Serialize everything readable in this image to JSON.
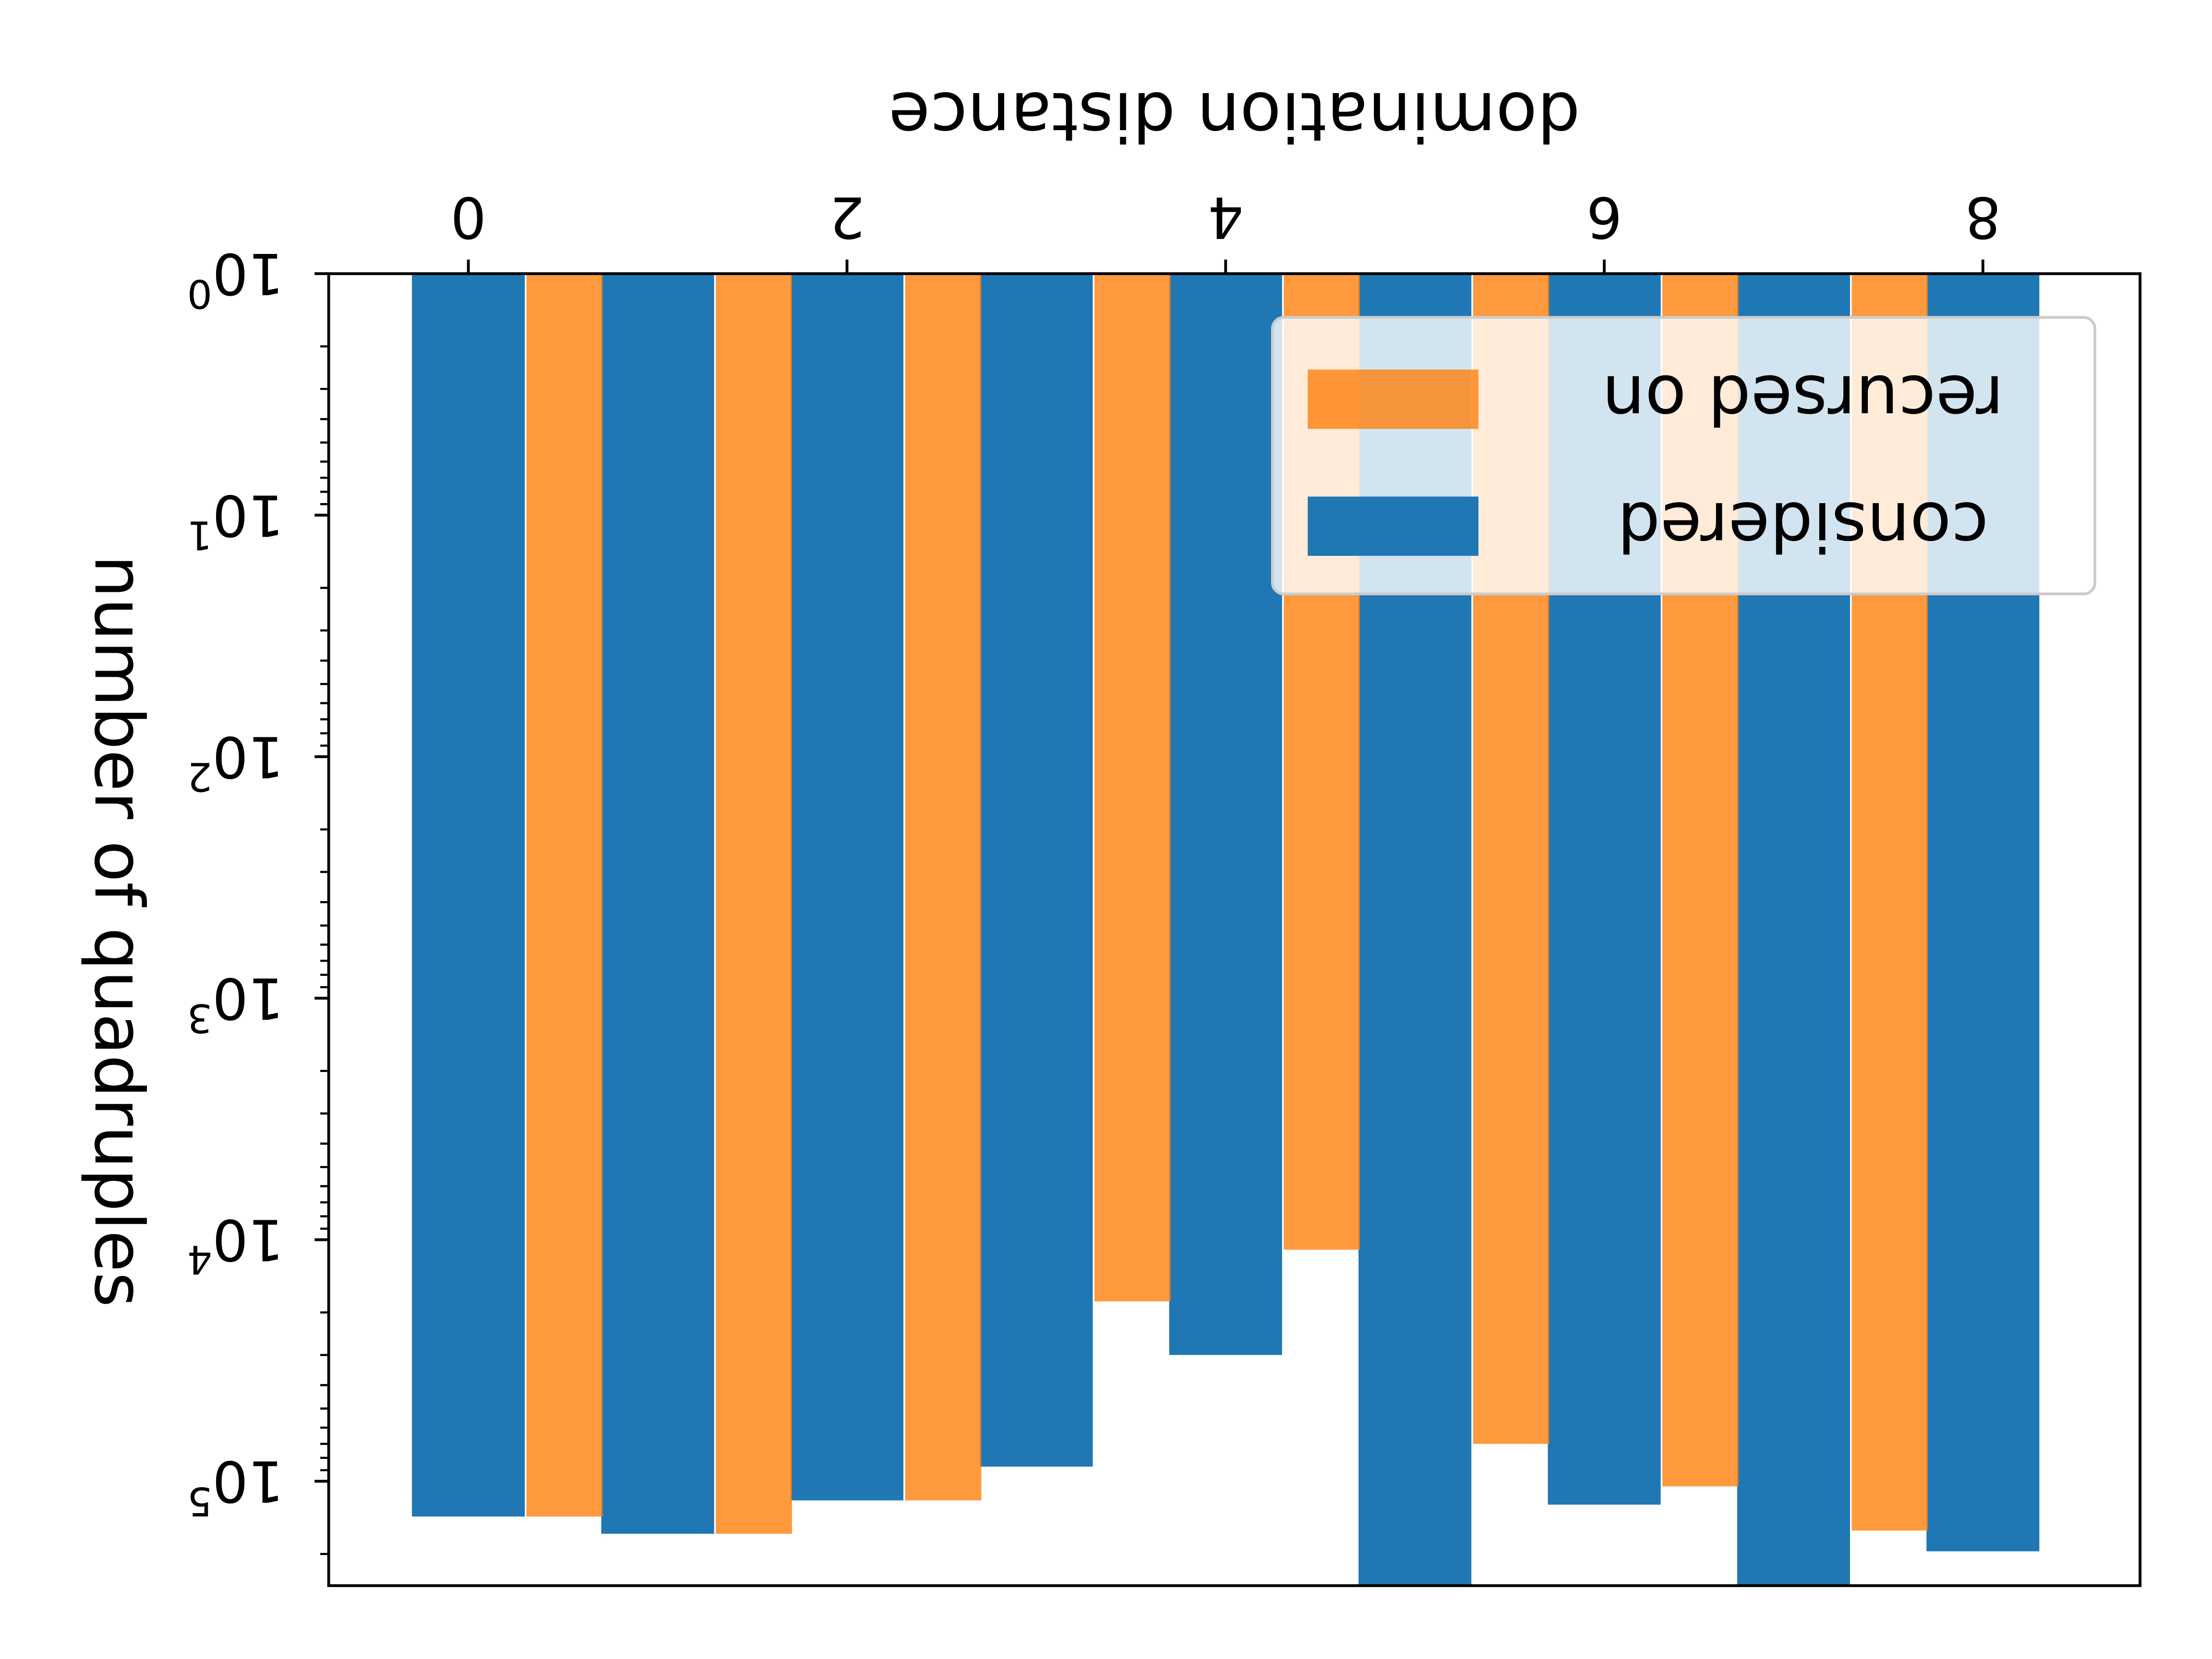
{
  "chart_data": {
    "type": "bar",
    "orientation": "mirrored",
    "title": "",
    "xlabel": "domination distance",
    "ylabel": "number of quadruples",
    "x_ticks": [
      "0",
      "2",
      "4",
      "6",
      "8"
    ],
    "y_ticks": [
      "10^0",
      "10^1",
      "10^2",
      "10^3",
      "10^4",
      "10^5"
    ],
    "y_scale": "log",
    "ylim": [
      1,
      300000
    ],
    "x": [
      0,
      1,
      2,
      3,
      4,
      5,
      6,
      7,
      8
    ],
    "legend_position": "top-right",
    "grid": false,
    "series": [
      {
        "name": "considered",
        "color": "#1f77b4",
        "values": [
          140000,
          165000,
          120000,
          87000,
          30000,
          330000,
          125000,
          450000,
          195000
        ]
      },
      {
        "name": "recursed on",
        "color": "#ff7f0e",
        "values": [
          null,
          140000,
          165000,
          120000,
          18000,
          11000,
          70000,
          105000,
          160000
        ]
      }
    ]
  }
}
